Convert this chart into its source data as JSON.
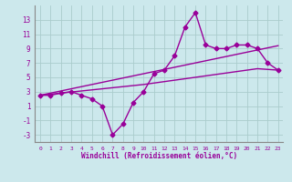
{
  "xlabel": "Windchill (Refroidissement éolien,°C)",
  "x": [
    0,
    1,
    2,
    3,
    4,
    5,
    6,
    7,
    8,
    9,
    10,
    11,
    12,
    13,
    14,
    15,
    16,
    17,
    18,
    19,
    20,
    21,
    22,
    23
  ],
  "line_zigzag": [
    2.5,
    2.5,
    2.8,
    3.0,
    2.5,
    2.0,
    1.0,
    -3.0,
    -1.5,
    1.5,
    3.0,
    5.5,
    6.0,
    8.0,
    12.0,
    14.0,
    9.5,
    9.0,
    9.0,
    9.5,
    9.5,
    9.0,
    7.0,
    6.0
  ],
  "line_upper": [
    2.5,
    2.8,
    3.1,
    3.4,
    3.7,
    4.0,
    4.3,
    4.6,
    4.9,
    5.2,
    5.5,
    5.8,
    6.1,
    6.4,
    6.7,
    7.0,
    7.3,
    7.6,
    7.9,
    8.2,
    8.5,
    8.8,
    9.1,
    9.4
  ],
  "line_lower": [
    2.5,
    2.65,
    2.8,
    2.95,
    3.1,
    3.25,
    3.4,
    3.55,
    3.7,
    3.85,
    4.0,
    4.2,
    4.4,
    4.6,
    4.8,
    5.0,
    5.2,
    5.4,
    5.6,
    5.8,
    6.0,
    6.2,
    6.1,
    6.0
  ],
  "color": "#990099",
  "bg_color": "#cce8ec",
  "grid_color": "#aacccc",
  "ylim": [
    -4,
    15
  ],
  "yticks": [
    -3,
    -1,
    1,
    3,
    5,
    7,
    9,
    11,
    13
  ],
  "xticks": [
    0,
    1,
    2,
    3,
    4,
    5,
    6,
    7,
    8,
    9,
    10,
    11,
    12,
    13,
    14,
    15,
    16,
    17,
    18,
    19,
    20,
    21,
    22,
    23
  ]
}
